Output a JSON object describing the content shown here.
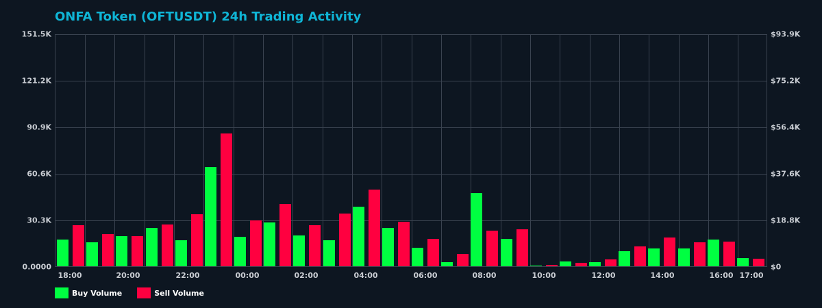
{
  "title": "ONFA Token (OFTUSDT) 24h Trading Activity",
  "colors": {
    "buy": "#00ff41",
    "sell": "#ff0040",
    "title": "#0fb5d6",
    "background": "#0d1621",
    "grid": "#3a4350"
  },
  "legend": {
    "buy_label": "Buy Volume",
    "sell_label": "Sell Volume"
  },
  "y_left_ticks": [
    "151.5K",
    "121.2K",
    "90.9K",
    "60.6K",
    "30.3K",
    "0.0000"
  ],
  "y_right_ticks": [
    "$93.9K",
    "$75.2K",
    "$56.4K",
    "$37.6K",
    "$18.8K",
    "$0"
  ],
  "x_ticks": [
    "18:00",
    "20:00",
    "22:00",
    "00:00",
    "02:00",
    "04:00",
    "06:00",
    "08:00",
    "10:00",
    "12:00",
    "14:00",
    "16:00",
    "17:00"
  ],
  "chart_data": {
    "type": "bar",
    "title": "ONFA Token (OFTUSDT) 24h Trading Activity",
    "xlabel": "",
    "ylabel": "Volume",
    "ylim": [
      0,
      151500
    ],
    "y2lim": [
      0,
      93900
    ],
    "grid": true,
    "legend_position": "bottom-left",
    "categories": [
      "18:00",
      "19:00",
      "20:00",
      "21:00",
      "22:00",
      "23:00",
      "00:00",
      "01:00",
      "02:00",
      "03:00",
      "04:00",
      "05:00",
      "06:00",
      "07:00",
      "08:00",
      "09:00",
      "10:00",
      "11:00",
      "12:00",
      "13:00",
      "14:00",
      "15:00",
      "16:00",
      "17:00"
    ],
    "series": [
      {
        "name": "Buy Volume",
        "color": "#00ff41",
        "values": [
          17400,
          15600,
          19600,
          25000,
          16900,
          65000,
          19200,
          28500,
          20000,
          16900,
          38800,
          25000,
          12000,
          2700,
          48100,
          17800,
          500,
          3100,
          2700,
          9800,
          11600,
          11600,
          17400,
          5300
        ]
      },
      {
        "name": "Sell Volume",
        "color": "#ff0040",
        "values": [
          26700,
          21000,
          19600,
          27200,
          33900,
          86900,
          29900,
          40600,
          26700,
          34300,
          50400,
          29000,
          17800,
          8000,
          23200,
          24100,
          800,
          2200,
          4500,
          12900,
          18700,
          15600,
          16000,
          4900
        ]
      }
    ]
  }
}
